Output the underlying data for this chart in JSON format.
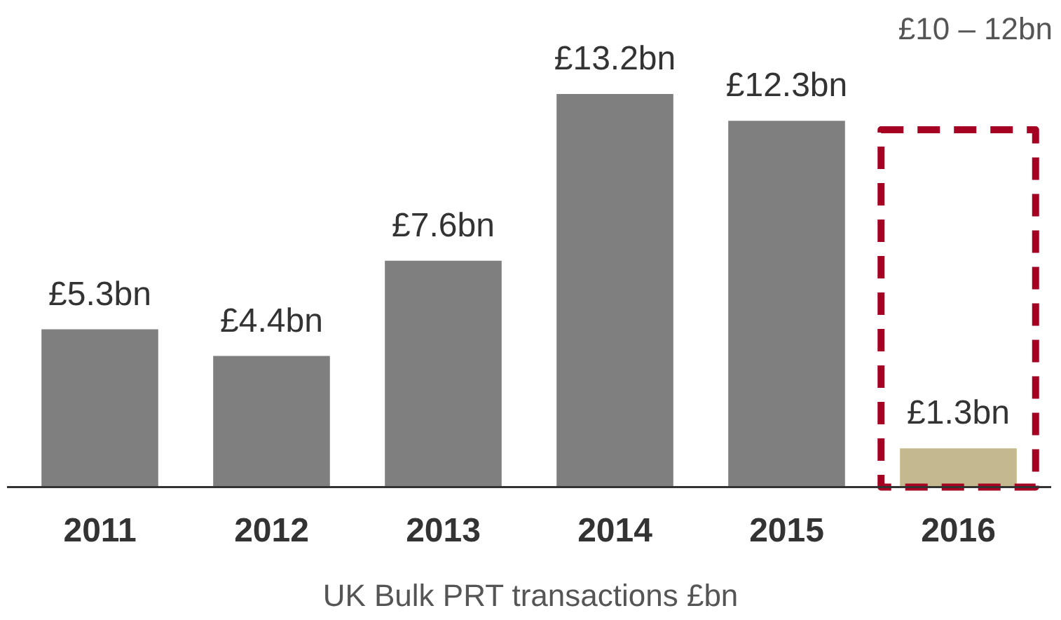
{
  "chart_data": {
    "type": "bar",
    "xlabel": "UK Bulk PRT transactions  £bn",
    "categories": [
      "2011",
      "2012",
      "2013",
      "2014",
      "2015",
      "2016"
    ],
    "series": [
      {
        "colors": [
          "#7f7f7f",
          "#7f7f7f",
          "#7f7f7f",
          "#7f7f7f",
          "#7f7f7f",
          "#c4b98e"
        ],
        "values": [
          5.3,
          4.4,
          7.6,
          13.2,
          12.3,
          1.3
        ],
        "value_labels": [
          "£5.3bn",
          "£4.4bn",
          "£7.6bn",
          "£13.2bn",
          "£12.3bn",
          "£1.3bn"
        ]
      },
      {
        "color": "#a50021",
        "line_style": "dashed",
        "values": [
          null,
          null,
          null,
          null,
          null,
          12
        ]
      }
    ],
    "annotations": [
      "£10 – 12bn"
    ],
    "tick_labels": "x",
    "grid": false,
    "legend": false
  }
}
